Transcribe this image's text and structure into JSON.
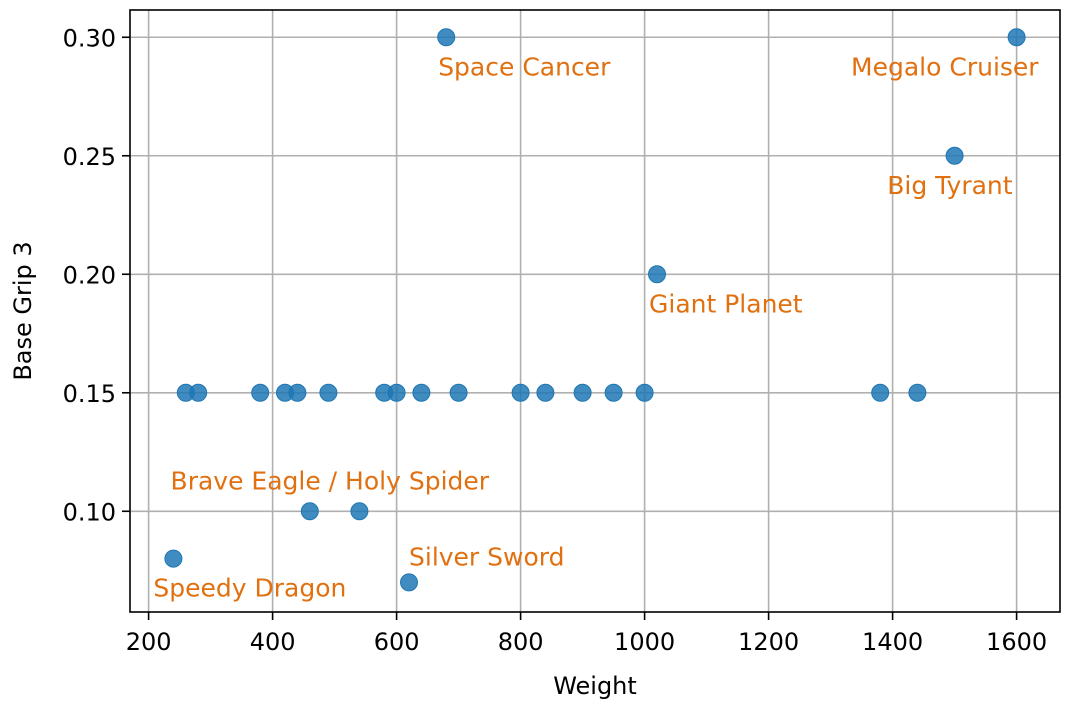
{
  "chart_data": {
    "type": "scatter",
    "title": "",
    "xlabel": "Weight",
    "ylabel": "Base Grip 3",
    "xlim": [
      170,
      1670
    ],
    "ylim": [
      0.0575,
      0.3115
    ],
    "xticks": [
      200,
      400,
      600,
      800,
      1000,
      1200,
      1400,
      1600
    ],
    "yticks": [
      0.1,
      0.15,
      0.2,
      0.25,
      0.3
    ],
    "ytick_labels": [
      "0.10",
      "0.15",
      "0.20",
      "0.25",
      "0.30"
    ],
    "grid": true,
    "point_color": "#1f77b4",
    "annotation_color": "#e07010",
    "points": [
      {
        "x": 240,
        "y": 0.08
      },
      {
        "x": 260,
        "y": 0.15
      },
      {
        "x": 280,
        "y": 0.15
      },
      {
        "x": 380,
        "y": 0.15
      },
      {
        "x": 420,
        "y": 0.15
      },
      {
        "x": 440,
        "y": 0.15
      },
      {
        "x": 460,
        "y": 0.1
      },
      {
        "x": 490,
        "y": 0.15
      },
      {
        "x": 540,
        "y": 0.1
      },
      {
        "x": 580,
        "y": 0.15
      },
      {
        "x": 600,
        "y": 0.15
      },
      {
        "x": 620,
        "y": 0.07
      },
      {
        "x": 640,
        "y": 0.15
      },
      {
        "x": 680,
        "y": 0.3
      },
      {
        "x": 700,
        "y": 0.15
      },
      {
        "x": 800,
        "y": 0.15
      },
      {
        "x": 840,
        "y": 0.15
      },
      {
        "x": 900,
        "y": 0.15
      },
      {
        "x": 950,
        "y": 0.15
      },
      {
        "x": 1000,
        "y": 0.15
      },
      {
        "x": 1020,
        "y": 0.2
      },
      {
        "x": 1380,
        "y": 0.15
      },
      {
        "x": 1440,
        "y": 0.15
      },
      {
        "x": 1500,
        "y": 0.25
      },
      {
        "x": 1600,
        "y": 0.3
      }
    ],
    "annotations": [
      {
        "text": "Space Cancer",
        "x": 680,
        "y": 0.3,
        "anchor": "below-right"
      },
      {
        "text": "Megalo Cruiser",
        "x": 1600,
        "y": 0.3,
        "anchor": "below-left"
      },
      {
        "text": "Big Tyrant",
        "x": 1500,
        "y": 0.25,
        "anchor": "below-left"
      },
      {
        "text": "Giant Planet",
        "x": 1020,
        "y": 0.2,
        "anchor": "below-right"
      },
      {
        "text": "Brave Eagle / Holy Spider",
        "x": 460,
        "y": 0.1,
        "anchor": "above-center"
      },
      {
        "text": "Silver Sword",
        "x": 620,
        "y": 0.07,
        "anchor": "above-right"
      },
      {
        "text": "Speedy Dragon",
        "x": 240,
        "y": 0.08,
        "anchor": "below-left"
      }
    ]
  }
}
